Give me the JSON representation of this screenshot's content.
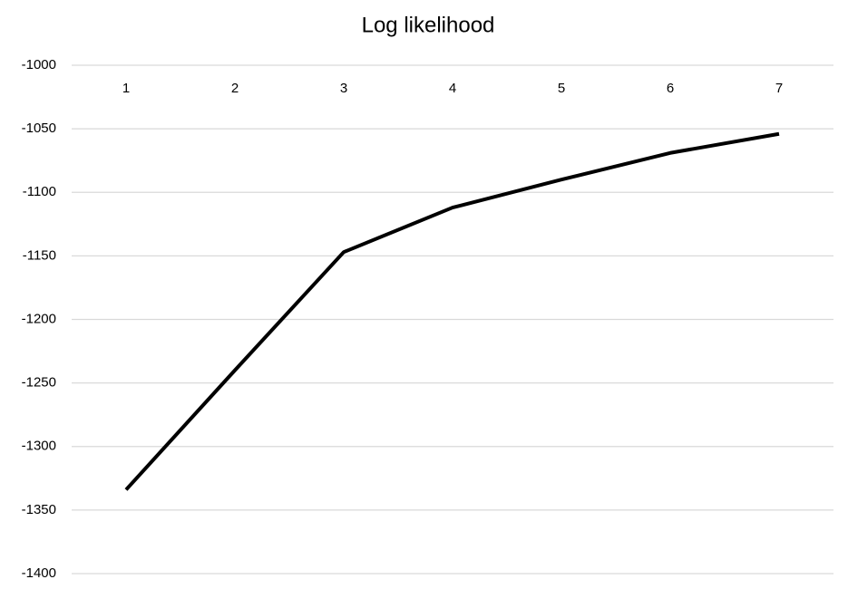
{
  "chart_data": {
    "type": "line",
    "title": "Log likelihood",
    "categories": [
      "1",
      "2",
      "3",
      "4",
      "5",
      "6",
      "7"
    ],
    "values": [
      -1334,
      -1240,
      -1147,
      -1112,
      -1090,
      -1069,
      -1054
    ],
    "color": "#000000",
    "ylim": [
      -1400,
      -1000
    ],
    "yticks": [
      -1400,
      -1350,
      -1300,
      -1250,
      -1200,
      -1150,
      -1100,
      -1050,
      -1000
    ],
    "grid": true
  }
}
